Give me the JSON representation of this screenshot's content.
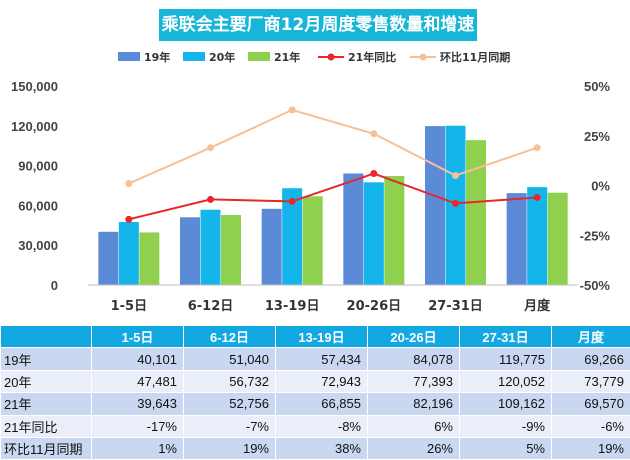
{
  "title": "乘联会主要厂商12月周度零售数量和增速",
  "chart_data": {
    "type": "bar",
    "title": "乘联会主要厂商12月周度零售数量和增速",
    "categories": [
      "1-5日",
      "6-12日",
      "13-19日",
      "20-26日",
      "27-31日",
      "月度"
    ],
    "series": [
      {
        "name": "19年",
        "type": "bar",
        "axis": "left",
        "color": "#5b8bd6",
        "values": [
          40101,
          51040,
          57434,
          84078,
          119775,
          69266
        ]
      },
      {
        "name": "20年",
        "type": "bar",
        "axis": "left",
        "color": "#14b5ea",
        "values": [
          47481,
          56732,
          72943,
          77393,
          120052,
          73779
        ]
      },
      {
        "name": "21年",
        "type": "bar",
        "axis": "left",
        "color": "#8fd14f",
        "values": [
          39643,
          52756,
          66855,
          82196,
          109162,
          69570
        ]
      },
      {
        "name": "21年同比",
        "type": "line",
        "axis": "right",
        "color": "#e8262b",
        "values": [
          -17,
          -7,
          -8,
          6,
          -9,
          -6
        ]
      },
      {
        "name": "环比11月同期",
        "type": "line",
        "axis": "right",
        "color": "#f6c097",
        "values": [
          1,
          19,
          38,
          26,
          5,
          19
        ]
      }
    ],
    "ylim": [
      0,
      150000
    ],
    "yticks": [
      "150,000",
      "120,000",
      "90,000",
      "60,000",
      "30,000",
      "0"
    ],
    "y2lim": [
      -50,
      50
    ],
    "y2ticks": [
      "50%",
      "25%",
      "0%",
      "-25%",
      "-50%"
    ],
    "legend_position": "top",
    "grid": false
  },
  "table": {
    "headers": [
      "",
      "1-5日",
      "6-12日",
      "13-19日",
      "20-26日",
      "27-31日",
      "月度"
    ],
    "rows": [
      {
        "label": "19年",
        "cells": [
          "40,101",
          "51,040",
          "57,434",
          "84,078",
          "119,775",
          "69,266"
        ]
      },
      {
        "label": "20年",
        "cells": [
          "47,481",
          "56,732",
          "72,943",
          "77,393",
          "120,052",
          "73,779"
        ]
      },
      {
        "label": "21年",
        "cells": [
          "39,643",
          "52,756",
          "66,855",
          "82,196",
          "109,162",
          "69,570"
        ]
      },
      {
        "label": "21年同比",
        "cells": [
          "-17%",
          "-7%",
          "-8%",
          "6%",
          "-9%",
          "-6%"
        ]
      },
      {
        "label": "环比11月同期",
        "cells": [
          "1%",
          "19%",
          "38%",
          "26%",
          "5%",
          "19%"
        ]
      }
    ]
  }
}
